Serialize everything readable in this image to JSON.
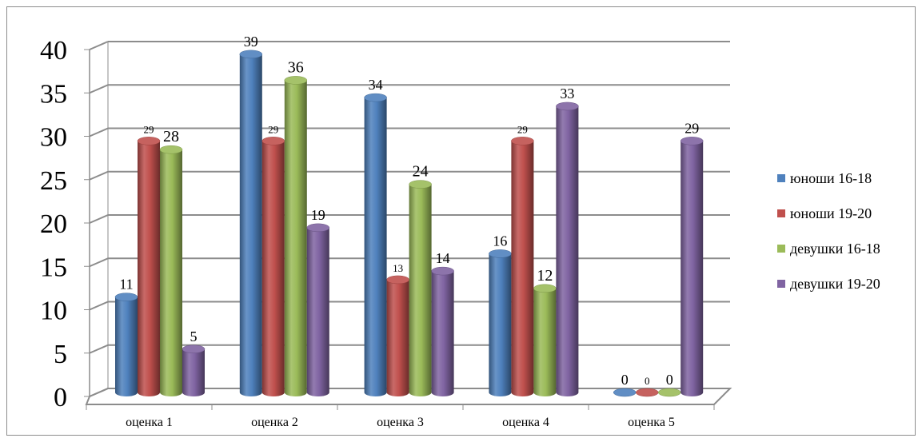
{
  "chart_data": {
    "type": "bar",
    "categories": [
      "оценка 1",
      "оценка 2",
      "оценка 3",
      "оценка 4",
      "оценка 5"
    ],
    "series": [
      {
        "name": "юноши 16-18",
        "color": "#4f81bd",
        "values": [
          11,
          39,
          34,
          16,
          0
        ]
      },
      {
        "name": "юноши 19-20",
        "color": "#c0504d",
        "values": [
          29,
          29,
          13,
          29,
          0
        ]
      },
      {
        "name": "девушки 16-18",
        "color": "#9bbb59",
        "values": [
          28,
          36,
          24,
          12,
          0
        ]
      },
      {
        "name": "девушки 19-20",
        "color": "#8064a2",
        "values": [
          5,
          19,
          14,
          33,
          29
        ]
      }
    ],
    "ylim": [
      0,
      40
    ],
    "yticks": [
      "0",
      "5",
      "10",
      "15",
      "20",
      "25",
      "30",
      "35",
      "40"
    ],
    "grid": true,
    "legend_position": "right",
    "style": "3d-cylinder"
  }
}
